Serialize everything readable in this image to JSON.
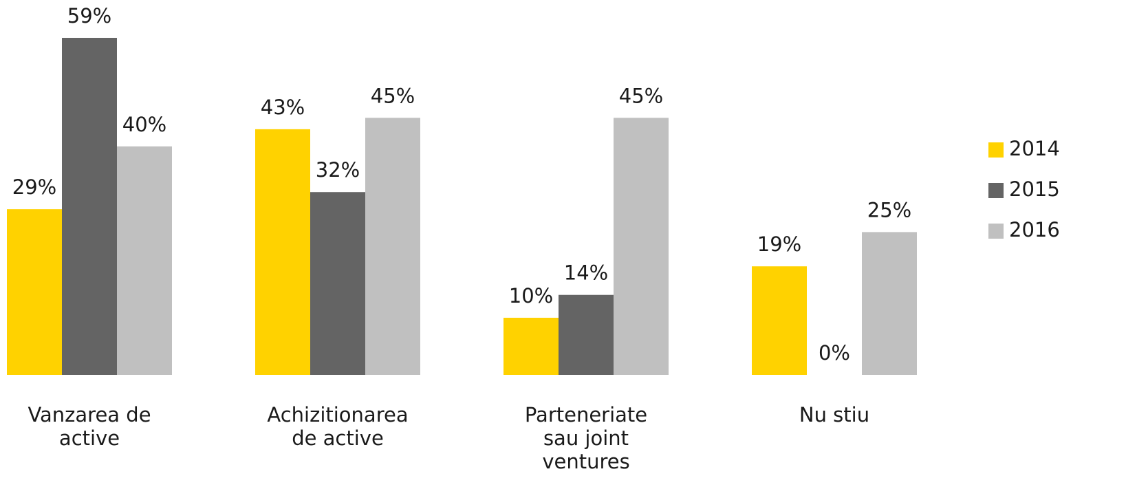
{
  "chart_data": {
    "type": "bar",
    "categories": [
      "Vanzarea de active",
      "Achizitionarea de active",
      "Parteneriate sau joint ventures",
      "Nu stiu"
    ],
    "series": [
      {
        "name": "2014",
        "color": "#ffd200",
        "values": [
          29,
          43,
          10,
          19
        ],
        "value_labels": [
          "29%",
          "43%",
          "10%",
          "19%"
        ]
      },
      {
        "name": "2015",
        "color": "#646464",
        "values": [
          59,
          32,
          14,
          0
        ],
        "value_labels": [
          "59%",
          "32%",
          "14%",
          "0%"
        ]
      },
      {
        "name": "2016",
        "color": "#c0c0c0",
        "values": [
          40,
          45,
          45,
          25
        ],
        "value_labels": [
          "40%",
          "45%",
          "45%",
          "25%"
        ]
      }
    ],
    "legend": "right"
  }
}
